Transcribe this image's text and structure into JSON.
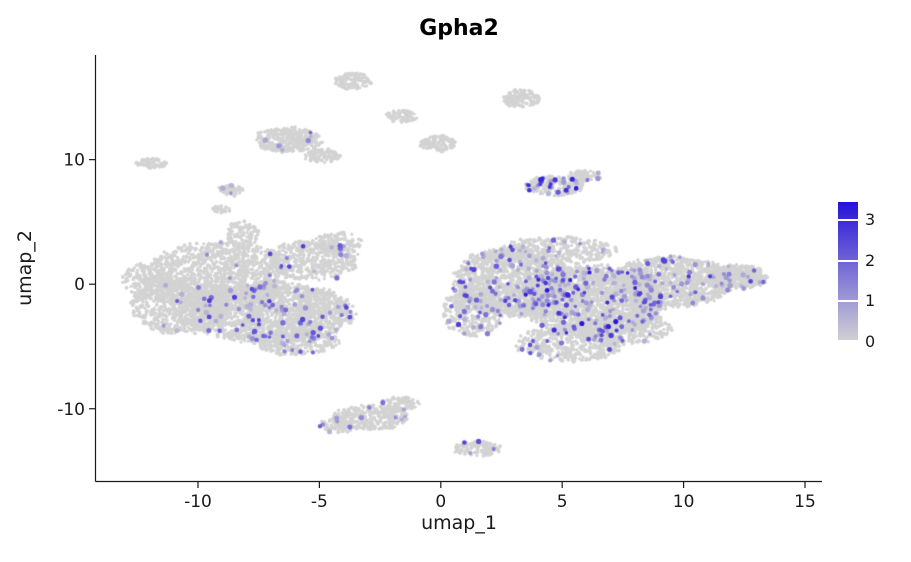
{
  "figure": {
    "background": "#ffffff"
  },
  "chart_data": {
    "type": "scatter",
    "title": "Gpha2",
    "xlabel": "umap_1",
    "ylabel": "umap_2",
    "x_ticks": [
      -10,
      -5,
      0,
      5,
      10,
      15
    ],
    "y_ticks": [
      -10,
      0,
      10
    ],
    "x_range": [
      -14.2,
      15.7
    ],
    "y_range": [
      -15.8,
      18.4
    ],
    "grid": false,
    "point_color_zero": "#d3d3d3",
    "point_color_max": "#2612d9",
    "expression_max": 3.3,
    "legend": {
      "tick_labels": [
        "3",
        "2",
        "1",
        "0"
      ],
      "tick_values": [
        3,
        2,
        1,
        0
      ],
      "vmax": 3.45,
      "color_low": "#d3d3d3",
      "color_high": "#2612d9"
    },
    "seed": 77,
    "clusters": [
      {
        "cx": -9.2,
        "cy": 0.6,
        "rx": 3.0,
        "ry": 2.8,
        "n": 1300,
        "f": 0.015
      },
      {
        "cx": -7.0,
        "cy": -2.3,
        "rx": 3.4,
        "ry": 2.4,
        "n": 1800,
        "f": 0.05
      },
      {
        "cx": -10.7,
        "cy": -1.8,
        "rx": 2.0,
        "ry": 2.2,
        "n": 700,
        "f": 0.01
      },
      {
        "cx": -5.3,
        "cy": 1.9,
        "rx": 1.9,
        "ry": 1.6,
        "n": 450,
        "f": 0.03
      },
      {
        "cx": -4.2,
        "cy": 3.3,
        "rx": 1.0,
        "ry": 0.9,
        "n": 130,
        "f": 0.02
      },
      {
        "cx": -8.2,
        "cy": 4.0,
        "rx": 0.7,
        "ry": 1.2,
        "n": 110,
        "f": 0
      },
      {
        "cx": -12.2,
        "cy": 0.3,
        "rx": 0.9,
        "ry": 1.4,
        "n": 170,
        "f": 0
      },
      {
        "cx": -6.0,
        "cy": -4.6,
        "rx": 1.8,
        "ry": 1.1,
        "n": 300,
        "f": 0.04
      },
      {
        "cx": -6.3,
        "cy": 11.6,
        "rx": 1.4,
        "ry": 1.0,
        "n": 330,
        "f": 0.01,
        "vm": 1.8
      },
      {
        "cx": -4.9,
        "cy": 10.3,
        "rx": 0.75,
        "ry": 0.55,
        "n": 110,
        "f": 0
      },
      {
        "cx": -11.9,
        "cy": 9.7,
        "rx": 0.65,
        "ry": 0.4,
        "n": 60,
        "f": 0
      },
      {
        "cx": -8.7,
        "cy": 7.5,
        "rx": 0.55,
        "ry": 0.45,
        "n": 55,
        "f": 0.06,
        "vm": 1.5
      },
      {
        "cx": -9.0,
        "cy": 6.0,
        "rx": 0.4,
        "ry": 0.3,
        "n": 25,
        "f": 0
      },
      {
        "cx": -3.6,
        "cy": 16.3,
        "rx": 0.8,
        "ry": 0.65,
        "n": 120,
        "f": 0
      },
      {
        "cx": -1.6,
        "cy": 13.5,
        "rx": 0.65,
        "ry": 0.5,
        "n": 75,
        "f": 0
      },
      {
        "cx": -0.1,
        "cy": 11.3,
        "rx": 0.75,
        "ry": 0.65,
        "n": 110,
        "f": 0
      },
      {
        "cx": 3.3,
        "cy": 14.9,
        "rx": 0.8,
        "ry": 0.7,
        "n": 130,
        "f": 0
      },
      {
        "cx": 4.7,
        "cy": 7.9,
        "rx": 1.2,
        "ry": 0.8,
        "n": 220,
        "f": 0.12,
        "vm": 3.3
      },
      {
        "cx": 5.9,
        "cy": 8.7,
        "rx": 0.7,
        "ry": 0.5,
        "n": 80,
        "f": 0.05
      },
      {
        "cx": 2.9,
        "cy": 0.2,
        "rx": 2.4,
        "ry": 2.8,
        "n": 1500,
        "f": 0.06
      },
      {
        "cx": 6.3,
        "cy": -1.3,
        "rx": 3.0,
        "ry": 2.8,
        "n": 2000,
        "f": 0.07,
        "vm": 3.3
      },
      {
        "cx": 9.5,
        "cy": 0.2,
        "rx": 2.6,
        "ry": 2.0,
        "n": 1200,
        "f": 0.045
      },
      {
        "cx": 12.2,
        "cy": 0.6,
        "rx": 1.3,
        "ry": 1.0,
        "n": 400,
        "f": 0.04
      },
      {
        "cx": 5.3,
        "cy": -4.8,
        "rx": 2.2,
        "ry": 1.4,
        "n": 500,
        "f": 0.04
      },
      {
        "cx": 4.8,
        "cy": 2.7,
        "rx": 2.4,
        "ry": 1.1,
        "n": 380,
        "f": 0.04
      },
      {
        "cx": 1.3,
        "cy": -2.2,
        "rx": 1.3,
        "ry": 2.0,
        "n": 380,
        "f": 0.05
      },
      {
        "cx": 7.5,
        "cy": -3.5,
        "rx": 2.0,
        "ry": 1.3,
        "n": 420,
        "f": 0.05
      },
      {
        "cx": -2.9,
        "cy": -10.7,
        "rx": 1.6,
        "ry": 1.0,
        "n": 330,
        "f": 0.03,
        "vm": 2.0
      },
      {
        "cx": -1.7,
        "cy": -9.6,
        "rx": 0.8,
        "ry": 0.55,
        "n": 90,
        "f": 0.02
      },
      {
        "cx": -4.2,
        "cy": -11.3,
        "rx": 0.8,
        "ry": 0.6,
        "n": 90,
        "f": 0.02
      },
      {
        "cx": 1.5,
        "cy": -13.2,
        "rx": 1.0,
        "ry": 0.6,
        "n": 130,
        "f": 0.02
      }
    ]
  }
}
